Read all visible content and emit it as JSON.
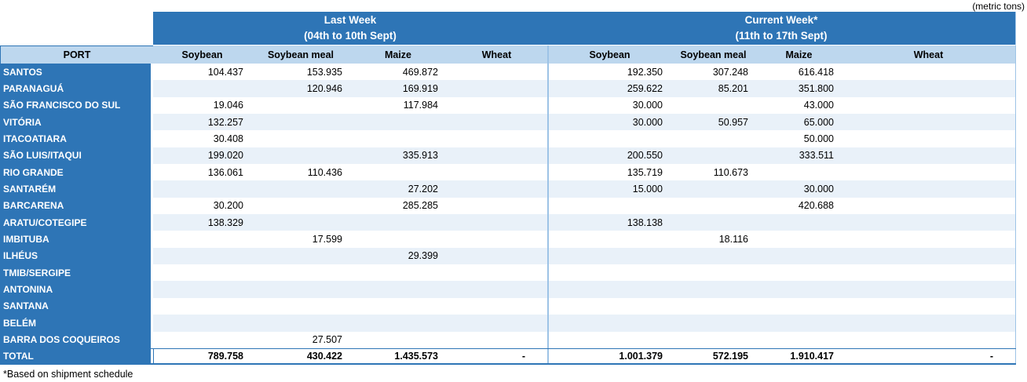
{
  "units_note": "(metric tons)",
  "footnote": "*Based on shipment schedule",
  "colors": {
    "header_blue": "#2E75B6",
    "subheader_blue": "#BDD7EE",
    "stripe_blue": "#E9F1F9",
    "divider_blue": "#9DC3E6",
    "total_border_blue": "#2E75B6",
    "header_text": "#FFFFFF",
    "body_text": "#000000"
  },
  "table": {
    "port_header": "PORT",
    "sections": [
      {
        "title": "Last Week",
        "subtitle": "(04th to 10th Sept)",
        "columns": [
          "Soybean",
          "Soybean meal",
          "Maize",
          "Wheat"
        ]
      },
      {
        "title": "Current Week*",
        "subtitle": "(11th to 17th Sept)",
        "columns": [
          "Soybean",
          "Soybean meal",
          "Maize",
          "Wheat"
        ]
      }
    ],
    "rows": [
      {
        "port": "SANTOS",
        "last_week": [
          "104.437",
          "153.935",
          "469.872",
          ""
        ],
        "current_week": [
          "192.350",
          "307.248",
          "616.418",
          ""
        ]
      },
      {
        "port": "PARANAGUÁ",
        "last_week": [
          "",
          "120.946",
          "169.919",
          ""
        ],
        "current_week": [
          "259.622",
          "85.201",
          "351.800",
          ""
        ]
      },
      {
        "port": "SÃO FRANCISCO DO SUL",
        "last_week": [
          "19.046",
          "",
          "117.984",
          ""
        ],
        "current_week": [
          "30.000",
          "",
          "43.000",
          ""
        ]
      },
      {
        "port": "VITÓRIA",
        "last_week": [
          "132.257",
          "",
          "",
          ""
        ],
        "current_week": [
          "30.000",
          "50.957",
          "65.000",
          ""
        ]
      },
      {
        "port": "ITACOATIARA",
        "last_week": [
          "30.408",
          "",
          "",
          ""
        ],
        "current_week": [
          "",
          "",
          "50.000",
          ""
        ]
      },
      {
        "port": "SÃO LUIS/ITAQUI",
        "last_week": [
          "199.020",
          "",
          "335.913",
          ""
        ],
        "current_week": [
          "200.550",
          "",
          "333.511",
          ""
        ]
      },
      {
        "port": "RIO GRANDE",
        "last_week": [
          "136.061",
          "110.436",
          "",
          ""
        ],
        "current_week": [
          "135.719",
          "110.673",
          "",
          ""
        ]
      },
      {
        "port": "SANTARÉM",
        "last_week": [
          "",
          "",
          "27.202",
          ""
        ],
        "current_week": [
          "15.000",
          "",
          "30.000",
          ""
        ]
      },
      {
        "port": "BARCARENA",
        "last_week": [
          "30.200",
          "",
          "285.285",
          ""
        ],
        "current_week": [
          "",
          "",
          "420.688",
          ""
        ]
      },
      {
        "port": "ARATU/COTEGIPE",
        "last_week": [
          "138.329",
          "",
          "",
          ""
        ],
        "current_week": [
          "138.138",
          "",
          "",
          ""
        ]
      },
      {
        "port": "IMBITUBA",
        "last_week": [
          "",
          "17.599",
          "",
          ""
        ],
        "current_week": [
          "",
          "18.116",
          "",
          ""
        ]
      },
      {
        "port": "ILHÉUS",
        "last_week": [
          "",
          "",
          "29.399",
          ""
        ],
        "current_week": [
          "",
          "",
          "",
          ""
        ]
      },
      {
        "port": "TMIB/SERGIPE",
        "last_week": [
          "",
          "",
          "",
          ""
        ],
        "current_week": [
          "",
          "",
          "",
          ""
        ]
      },
      {
        "port": "ANTONINA",
        "last_week": [
          "",
          "",
          "",
          ""
        ],
        "current_week": [
          "",
          "",
          "",
          ""
        ]
      },
      {
        "port": "SANTANA",
        "last_week": [
          "",
          "",
          "",
          ""
        ],
        "current_week": [
          "",
          "",
          "",
          ""
        ]
      },
      {
        "port": "BELÉM",
        "last_week": [
          "",
          "",
          "",
          ""
        ],
        "current_week": [
          "",
          "",
          "",
          ""
        ]
      },
      {
        "port": "BARRA DOS COQUEIROS",
        "last_week": [
          "",
          "27.507",
          "",
          ""
        ],
        "current_week": [
          "",
          "",
          "",
          ""
        ]
      }
    ],
    "total": {
      "label": "TOTAL",
      "last_week": [
        "789.758",
        "430.422",
        "1.435.573",
        "-"
      ],
      "current_week": [
        "1.001.379",
        "572.195",
        "1.910.417",
        "-"
      ]
    }
  }
}
